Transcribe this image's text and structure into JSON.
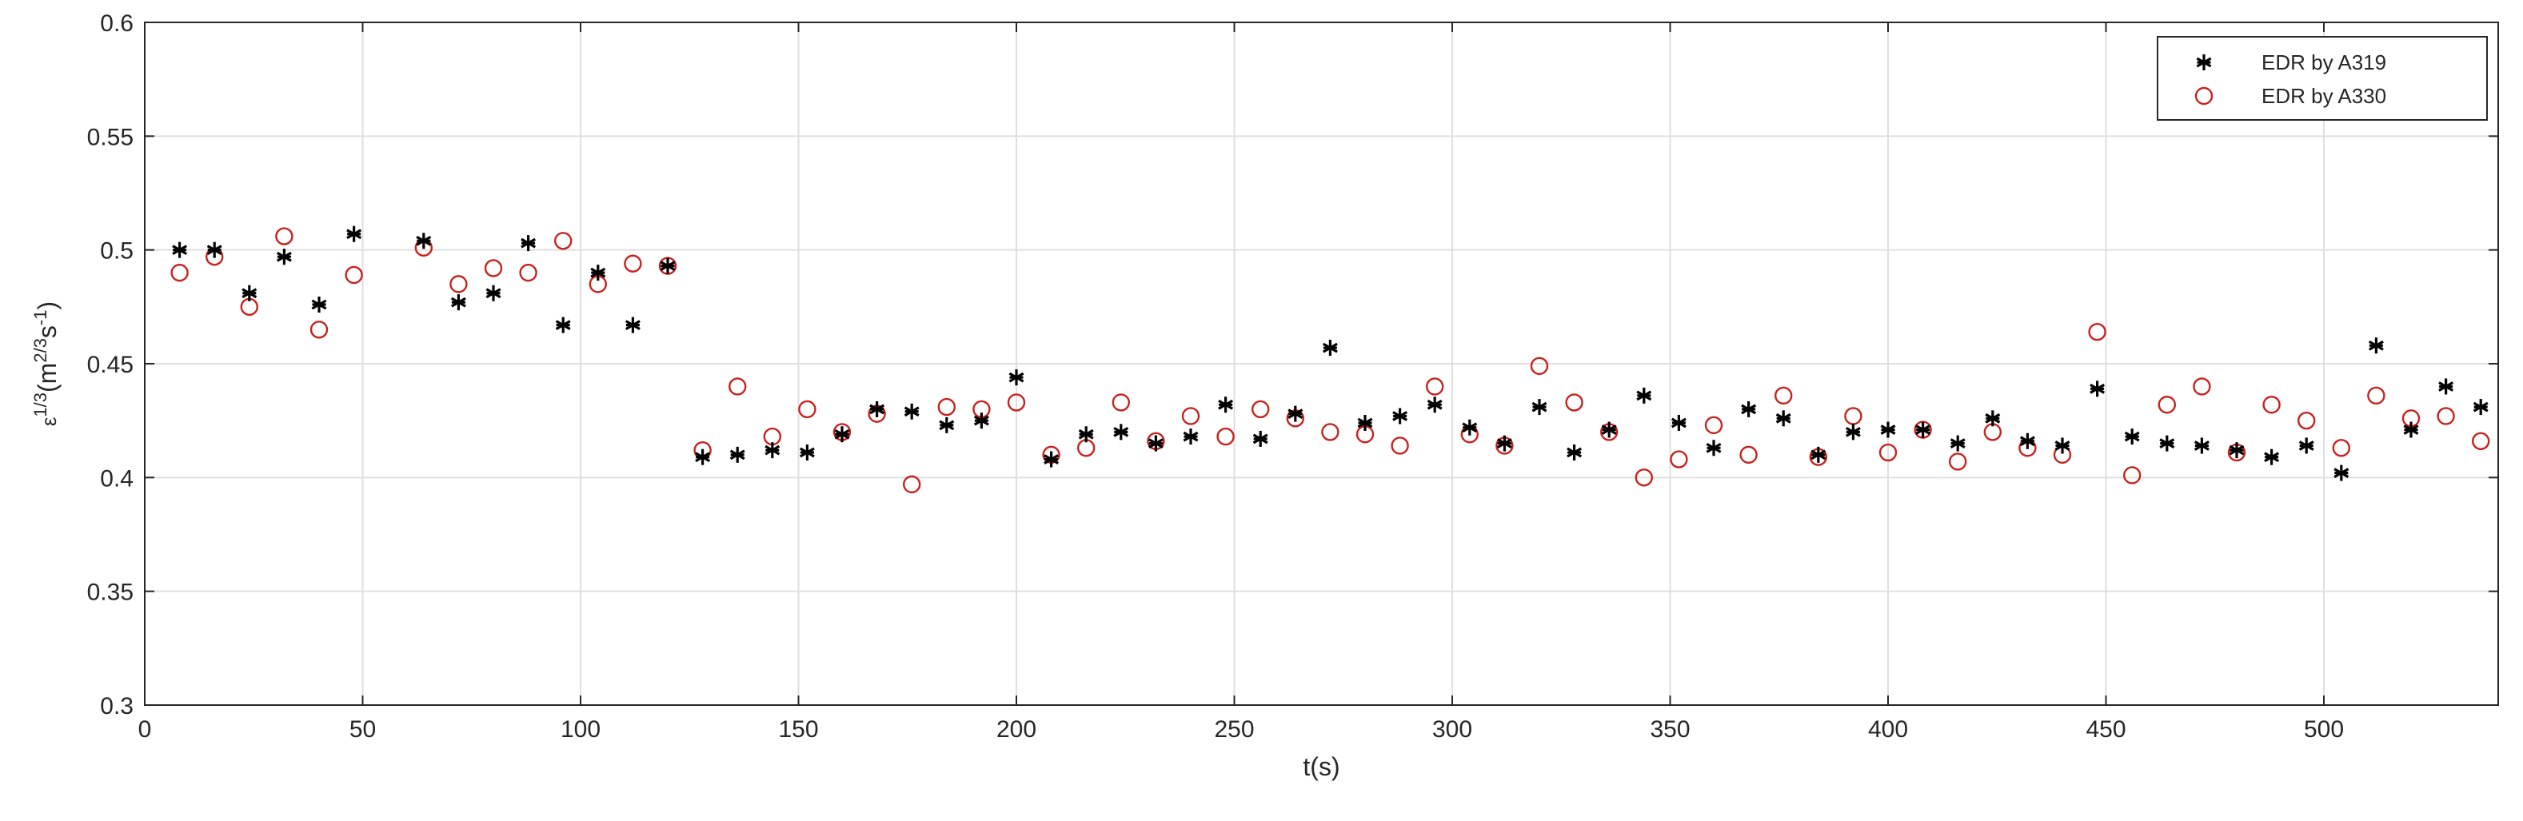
{
  "chart_data": {
    "type": "scatter",
    "title": "",
    "xlabel": "t(s)",
    "ylabel": {
      "symbol": "ε",
      "exp1": "1/3",
      "base": "(m",
      "exp2": "2/3",
      "mid": "s",
      "exp3": "-1",
      "close": ")"
    },
    "xlim": [
      0,
      540
    ],
    "ylim": [
      0.3,
      0.6
    ],
    "xticks": [
      0,
      50,
      100,
      150,
      200,
      250,
      300,
      350,
      400,
      450,
      500
    ],
    "yticks": [
      0.3,
      0.35,
      0.4,
      0.45,
      0.5,
      0.55,
      0.6
    ],
    "xtick_labels": [
      "0",
      "50",
      "100",
      "150",
      "200",
      "250",
      "300",
      "350",
      "400",
      "450",
      "500"
    ],
    "ytick_labels": [
      "0.3",
      "0.35",
      "0.4",
      "0.45",
      "0.5",
      "0.55",
      "0.6"
    ],
    "grid": true,
    "legend_position": "top-right",
    "series": [
      {
        "name": "EDR by A319",
        "marker": "asterisk",
        "color": "#000000",
        "x": [
          8,
          16,
          24,
          32,
          40,
          48,
          64,
          72,
          80,
          88,
          96,
          104,
          112,
          120,
          128,
          136,
          144,
          152,
          160,
          168,
          176,
          184,
          192,
          200,
          208,
          216,
          224,
          232,
          240,
          248,
          256,
          264,
          272,
          280,
          288,
          296,
          304,
          312,
          320,
          328,
          336,
          344,
          352,
          360,
          368,
          376,
          384,
          392,
          400,
          408,
          416,
          424,
          432,
          440,
          448,
          456,
          464,
          472,
          480,
          488,
          496,
          504,
          512,
          520,
          528,
          536
        ],
        "y": [
          0.5,
          0.5,
          0.481,
          0.497,
          0.476,
          0.507,
          0.504,
          0.477,
          0.481,
          0.503,
          0.467,
          0.49,
          0.467,
          0.493,
          0.409,
          0.41,
          0.412,
          0.411,
          0.419,
          0.43,
          0.429,
          0.423,
          0.425,
          0.444,
          0.408,
          0.419,
          0.42,
          0.415,
          0.418,
          0.432,
          0.417,
          0.428,
          0.457,
          0.424,
          0.427,
          0.432,
          0.422,
          0.415,
          0.431,
          0.411,
          0.421,
          0.436,
          0.424,
          0.413,
          0.43,
          0.426,
          0.41,
          0.42,
          0.421,
          0.421,
          0.415,
          0.426,
          0.416,
          0.414,
          0.439,
          0.418,
          0.415,
          0.414,
          0.412,
          0.409,
          0.414,
          0.402,
          0.458,
          0.421,
          0.44,
          0.431
        ]
      },
      {
        "name": "EDR by A330",
        "marker": "circle",
        "color": "#c8211e",
        "x": [
          8,
          16,
          24,
          32,
          40,
          48,
          64,
          72,
          80,
          88,
          96,
          104,
          112,
          120,
          128,
          136,
          144,
          152,
          160,
          168,
          176,
          184,
          192,
          200,
          208,
          216,
          224,
          232,
          240,
          248,
          256,
          264,
          272,
          280,
          288,
          296,
          304,
          312,
          320,
          328,
          336,
          344,
          352,
          360,
          368,
          376,
          384,
          392,
          400,
          408,
          416,
          424,
          432,
          440,
          448,
          456,
          464,
          472,
          480,
          488,
          496,
          504,
          512,
          520,
          528,
          536
        ],
        "y": [
          0.49,
          0.497,
          0.475,
          0.506,
          0.465,
          0.489,
          0.501,
          0.485,
          0.492,
          0.49,
          0.504,
          0.485,
          0.494,
          0.493,
          0.412,
          0.44,
          0.418,
          0.43,
          0.42,
          0.428,
          0.397,
          0.431,
          0.43,
          0.433,
          0.41,
          0.413,
          0.433,
          0.416,
          0.427,
          0.418,
          0.43,
          0.426,
          0.42,
          0.419,
          0.414,
          0.44,
          0.419,
          0.414,
          0.449,
          0.433,
          0.42,
          0.4,
          0.408,
          0.423,
          0.41,
          0.436,
          0.409,
          0.427,
          0.411,
          0.421,
          0.407,
          0.42,
          0.413,
          0.41,
          0.464,
          0.401,
          0.432,
          0.44,
          0.411,
          0.432,
          0.425,
          0.413,
          0.436,
          0.426,
          0.427,
          0.416
        ]
      }
    ]
  }
}
